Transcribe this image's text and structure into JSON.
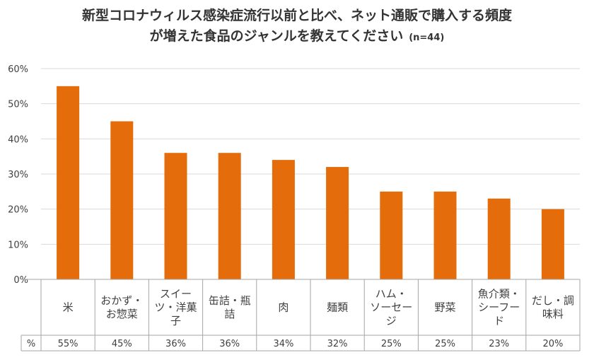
{
  "title_line1": "新型コロナウィルス感染症流行以前と比べ、ネット通販で購入する頻度",
  "title_line2": "が増えた食品のジャンルを教えてください",
  "sample_size": "(n=44)",
  "table_row_label": "%",
  "colors": {
    "bar": "#E46C0A",
    "grid": "#D9D9D9",
    "axis": "#A6A6A6"
  },
  "chart_data": {
    "type": "bar",
    "title": "新型コロナウィルス感染症流行以前と比べ、ネット通販で購入する頻度が増えた食品のジャンルを教えてください",
    "categories": [
      [
        "米"
      ],
      [
        "おかず・",
        "お惣菜"
      ],
      [
        "スイー",
        "ツ・洋菓",
        "子"
      ],
      [
        "缶詰・瓶",
        "詰"
      ],
      [
        "肉"
      ],
      [
        "麺類"
      ],
      [
        "ハム・",
        "ソーセー",
        "ジ"
      ],
      [
        "野菜"
      ],
      [
        "魚介類・",
        "シーフー",
        "ド"
      ],
      [
        "だし・調",
        "味料"
      ]
    ],
    "values": [
      55,
      45,
      36,
      36,
      34,
      32,
      25,
      25,
      23,
      20
    ],
    "value_labels": [
      "55%",
      "45%",
      "36%",
      "36%",
      "34%",
      "32%",
      "25%",
      "25%",
      "23%",
      "20%"
    ],
    "ylim": [
      0,
      60
    ],
    "yticks": [
      0,
      10,
      20,
      30,
      40,
      50,
      60
    ],
    "ytick_labels": [
      "0%",
      "10%",
      "20%",
      "30%",
      "40%",
      "50%",
      "60%"
    ],
    "grid": true,
    "legend": "none"
  }
}
